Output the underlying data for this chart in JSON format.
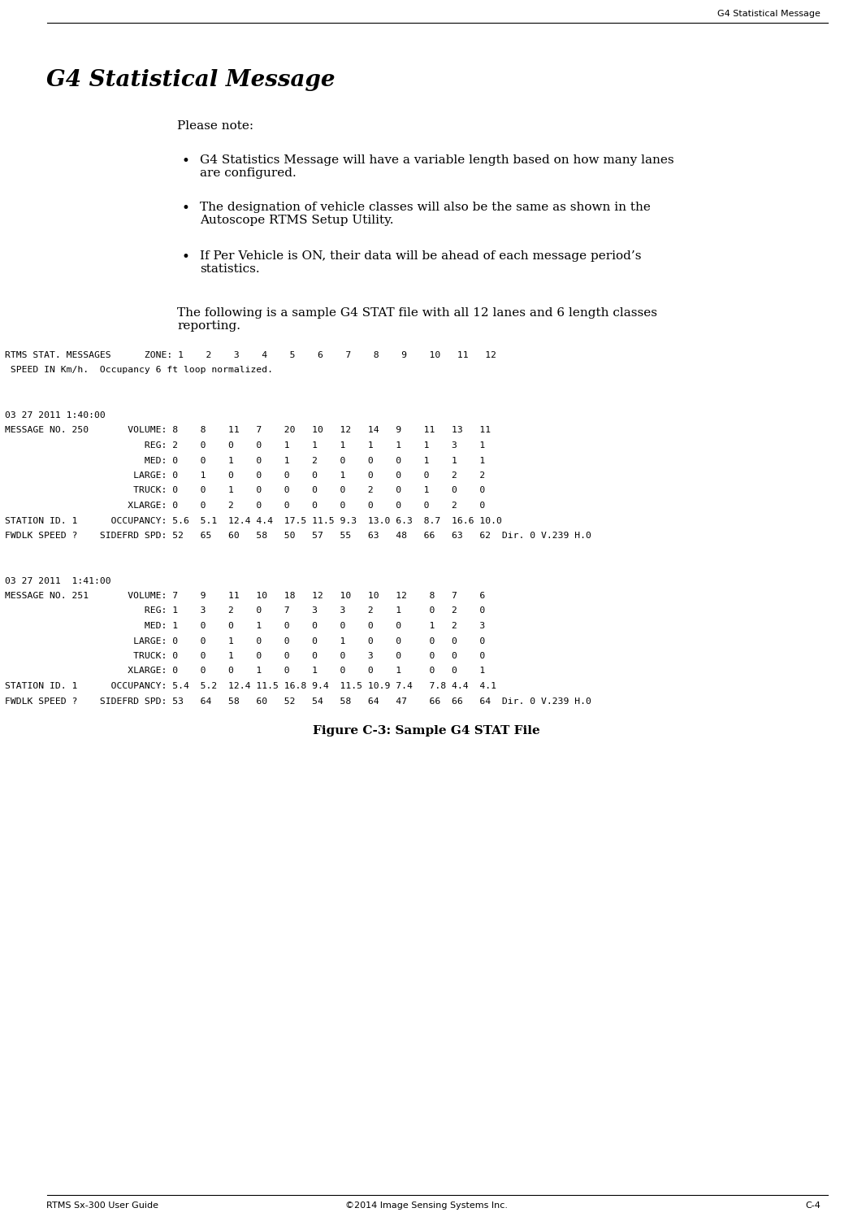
{
  "header_right": "G4 Statistical Message",
  "title": "G4 Statistical Message",
  "please_note": "Please note:",
  "bullet1": "G4 Statistics Message will have a variable length based on how many lanes\nare configured.",
  "bullet2": "The designation of vehicle classes will also be the same as shown in the\nAutoscope RTMS Setup Utility.",
  "bullet3": "If Per Vehicle is ON, their data will be ahead of each message period’s\nstatistics.",
  "intro": "The following is a sample G4 STAT file with all 12 lanes and 6 length classes\nreporting.",
  "caption": "Figure C-3: Sample G4 STAT File",
  "footer_left": "RTMS Sx-300 User Guide",
  "footer_center": "©2014 Image Sensing Systems Inc.",
  "footer_right": "C-4",
  "bg_color": "#ffffff",
  "text_color": "#000000"
}
